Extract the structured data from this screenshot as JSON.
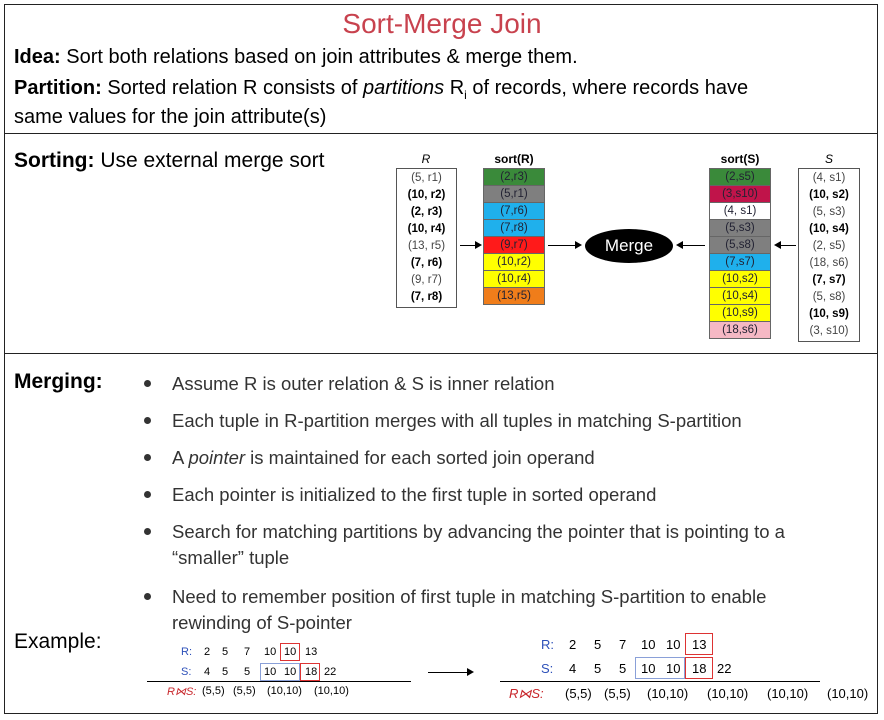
{
  "title": "Sort-Merge Join",
  "idea": {
    "label": "Idea:",
    "text": " Sort both relations based on join attributes & merge them."
  },
  "partition": {
    "label": "Partition:",
    "text1": " Sorted relation R consists of ",
    "italic": "partitions",
    "text2": " R",
    "sub": "i",
    "text3": " of records, where records have",
    "line2": "same values for the join attribute(s)"
  },
  "sorting": {
    "label": "Sorting:",
    "text": " Use external merge sort"
  },
  "diagram": {
    "r_header": "R",
    "sortr_header": "sort(R)",
    "sorts_header": "sort(S)",
    "s_header": "S",
    "merge_label": "Merge",
    "r_rows": [
      {
        "t": "(5, r1)",
        "b": false
      },
      {
        "t": "(10, r2)",
        "b": true
      },
      {
        "t": "(2, r3)",
        "b": true
      },
      {
        "t": "(10, r4)",
        "b": true
      },
      {
        "t": "(13, r5)",
        "b": false
      },
      {
        "t": "(7, r6)",
        "b": true
      },
      {
        "t": "(9, r7)",
        "b": false
      },
      {
        "t": "(7, r8)",
        "b": true
      }
    ],
    "sortr_rows": [
      {
        "t": "(2,r3)",
        "c": "#3a8a3a"
      },
      {
        "t": "(5,r1)",
        "c": "#7f7f7f"
      },
      {
        "t": "(7,r6)",
        "c": "#1fb0ec"
      },
      {
        "t": "(7,r8)",
        "c": "#1fb0ec"
      },
      {
        "t": "(9,r7)",
        "c": "#ff1a1a"
      },
      {
        "t": "(10,r2)",
        "c": "#ffff00"
      },
      {
        "t": "(10,r4)",
        "c": "#ffff00"
      },
      {
        "t": "(13,r5)",
        "c": "#f07d1a"
      }
    ],
    "sorts_rows": [
      {
        "t": "(2,s5)",
        "c": "#3a8a3a"
      },
      {
        "t": "(3,s10)",
        "c": "#c0144a"
      },
      {
        "t": "(4, s1)",
        "c": "#ffffff"
      },
      {
        "t": "(5,s3)",
        "c": "#7f7f7f"
      },
      {
        "t": "(5,s8)",
        "c": "#7f7f7f"
      },
      {
        "t": "(7,s7)",
        "c": "#1fb0ec"
      },
      {
        "t": "(10,s2)",
        "c": "#ffff00"
      },
      {
        "t": "(10,s4)",
        "c": "#ffff00"
      },
      {
        "t": "(10,s9)",
        "c": "#ffff00"
      },
      {
        "t": "(18,s6)",
        "c": "#f5b8c4"
      }
    ],
    "s_rows": [
      {
        "t": "(4, s1)",
        "b": false
      },
      {
        "t": "(10, s2)",
        "b": true
      },
      {
        "t": "(5, s3)",
        "b": false
      },
      {
        "t": "(10, s4)",
        "b": true
      },
      {
        "t": "(2, s5)",
        "b": false
      },
      {
        "t": "(18, s6)",
        "b": false
      },
      {
        "t": "(7, s7)",
        "b": true
      },
      {
        "t": "(5, s8)",
        "b": false
      },
      {
        "t": "(10, s9)",
        "b": true
      },
      {
        "t": "(3, s10)",
        "b": false
      }
    ]
  },
  "merging": {
    "label": "Merging:",
    "bullets": [
      {
        "a": "Assume R is outer relation & S is inner relation"
      },
      {
        "a": "Each tuple in R-partition merges with all tuples in matching S-partition"
      },
      {
        "a": "A ",
        "i": "pointer",
        "c": " is maintained for each sorted join operand"
      },
      {
        "a": "Each pointer is initialized to the first tuple in sorted operand"
      },
      {
        "a": "Search for matching partitions by advancing the pointer that is pointing to a",
        "l2": "“smaller” tuple"
      },
      {
        "a": "Need to remember position of first tuple in matching S-partition to enable",
        "l2": "rewinding of S-pointer"
      }
    ]
  },
  "example": {
    "label": "Example:",
    "left": {
      "r_label": "R:",
      "r_vals": [
        "2",
        "5",
        "7",
        "10",
        "10",
        "13"
      ],
      "s_label": "S:",
      "s_vals": [
        "4",
        "5",
        "5",
        "10",
        "10",
        "18",
        "22"
      ],
      "j_label": "R⋈S:",
      "j_vals": [
        "(5,5)",
        "(5,5)",
        "(10,10)",
        "(10,10)"
      ]
    },
    "right": {
      "r_label": "R:",
      "r_vals": [
        "2",
        "5",
        "7",
        "10",
        "10",
        "13"
      ],
      "s_label": "S:",
      "s_vals": [
        "4",
        "5",
        "5",
        "10",
        "10",
        "18",
        "22"
      ],
      "j_label": "R⋈S:",
      "j_vals": [
        "(5,5)",
        "(5,5)",
        "(10,10)",
        "(10,10)",
        "(10,10)",
        "(10,10)"
      ]
    }
  }
}
